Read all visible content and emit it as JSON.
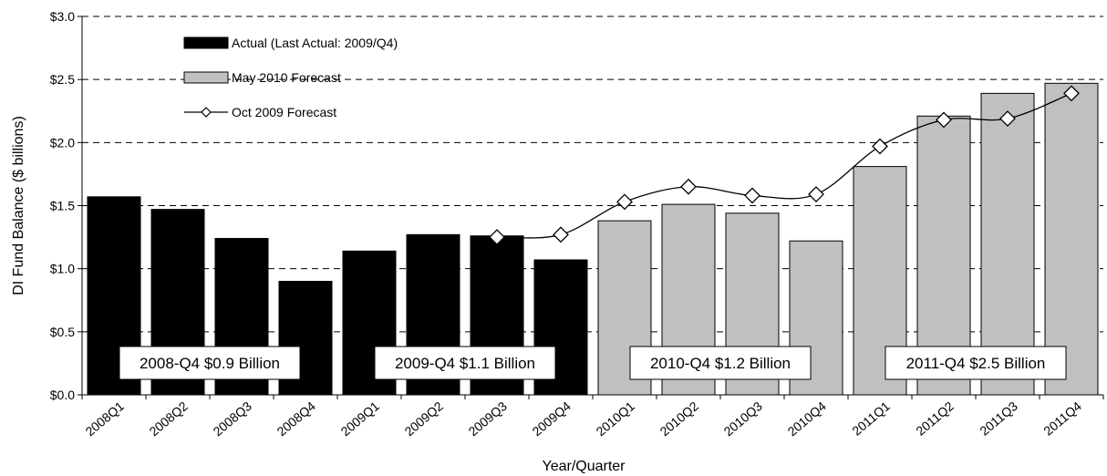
{
  "chart_data": {
    "type": "bar",
    "title": "",
    "xlabel": "Year/Quarter",
    "ylabel": "DI Fund Balance ($ billions)",
    "ylim": [
      0,
      3.0
    ],
    "yticks": [
      "$0.0",
      "$0.5",
      "$1.0",
      "$1.5",
      "$2.0",
      "$2.5",
      "$3.0"
    ],
    "grid": "dashed-horizontal",
    "categories": [
      "2008Q1",
      "2008Q2",
      "2008Q3",
      "2008Q4",
      "2009Q1",
      "2009Q2",
      "2009Q3",
      "2009Q4",
      "2010Q1",
      "2010Q2",
      "2010Q3",
      "2010Q4",
      "2011Q1",
      "2011Q2",
      "2011Q3",
      "2011Q4"
    ],
    "series": [
      {
        "name": "Actual (Last Actual: 2009/Q4)",
        "kind": "bar",
        "color": "#000000",
        "values": [
          1.57,
          1.47,
          1.24,
          0.9,
          1.14,
          1.27,
          1.26,
          1.07,
          null,
          null,
          null,
          null,
          null,
          null,
          null,
          null
        ]
      },
      {
        "name": "May 2010 Forecast",
        "kind": "bar",
        "color": "#c0c0c0",
        "values": [
          null,
          null,
          null,
          null,
          null,
          null,
          null,
          null,
          1.38,
          1.51,
          1.44,
          1.22,
          1.81,
          2.21,
          2.39,
          2.47
        ]
      },
      {
        "name": "Oct 2009 Forecast",
        "kind": "line",
        "marker": "diamond",
        "color": "#000000",
        "values": [
          null,
          null,
          null,
          null,
          null,
          null,
          1.25,
          1.27,
          1.53,
          1.65,
          1.58,
          1.59,
          1.97,
          2.18,
          2.19,
          2.39
        ]
      }
    ],
    "legend": "top-left",
    "annotations": [
      {
        "text": "2008-Q4 $0.9 Billion",
        "span": [
          0,
          3
        ]
      },
      {
        "text": "2009-Q4 $1.1 Billion",
        "span": [
          4,
          7
        ]
      },
      {
        "text": "2010-Q4 $1.2 Billion",
        "span": [
          8,
          11
        ]
      },
      {
        "text": "2011-Q4 $2.5 Billion",
        "span": [
          12,
          15
        ]
      }
    ]
  }
}
